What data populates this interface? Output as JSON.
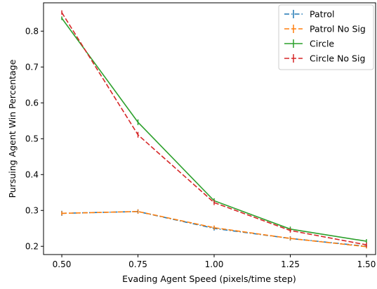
{
  "chart_data": {
    "type": "line",
    "xlabel": "Evading Agent Speed (pixels/time step)",
    "ylabel": "Pursuing Agent Win Percentage",
    "xlim": [
      0.44,
      1.53
    ],
    "ylim": [
      0.177,
      0.879
    ],
    "x_ticks": [
      "0.50",
      "0.75",
      "1.00",
      "1.25",
      "1.50"
    ],
    "y_ticks": [
      "0.2",
      "0.3",
      "0.4",
      "0.5",
      "0.6",
      "0.7",
      "0.8"
    ],
    "x": [
      0.5,
      0.75,
      1.0,
      1.25,
      1.5
    ],
    "grid": false,
    "legend_position": "top-right",
    "series": [
      {
        "name": "Patrol",
        "values": [
          0.292,
          0.297,
          0.25,
          0.222,
          0.2
        ],
        "errors": [
          0.007,
          0.006,
          0.006,
          0.006,
          0.005
        ],
        "color": "#1f77b4",
        "linestyle": "dashdot"
      },
      {
        "name": "Patrol No Sig",
        "values": [
          0.292,
          0.297,
          0.252,
          0.222,
          0.199
        ],
        "errors": [
          0.006,
          0.006,
          0.006,
          0.005,
          0.005
        ],
        "color": "#ff7f0e",
        "linestyle": "dashed"
      },
      {
        "name": "Circle",
        "values": [
          0.836,
          0.546,
          0.327,
          0.248,
          0.214
        ],
        "errors": [
          0.005,
          0.008,
          0.007,
          0.007,
          0.006
        ],
        "color": "#2ca02c",
        "linestyle": "solid"
      },
      {
        "name": "Circle No Sig",
        "values": [
          0.852,
          0.511,
          0.322,
          0.244,
          0.204
        ],
        "errors": [
          0.006,
          0.008,
          0.007,
          0.006,
          0.006
        ],
        "color": "#d62728",
        "linestyle": "dashed"
      }
    ]
  }
}
